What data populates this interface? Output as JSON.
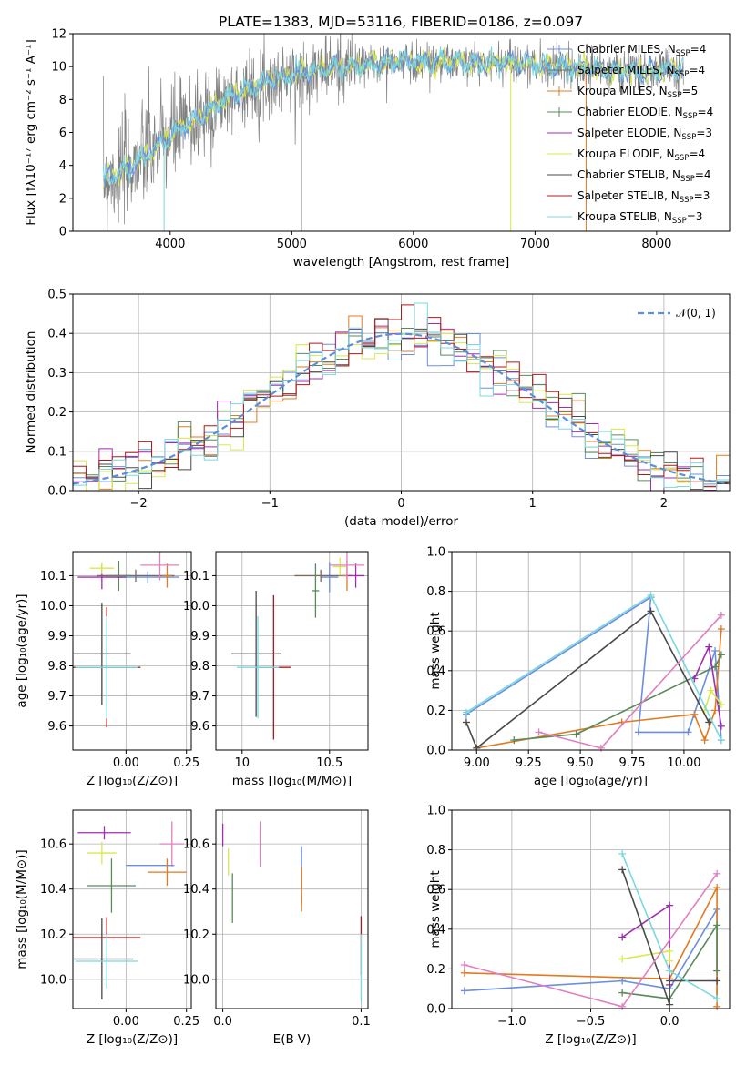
{
  "figure": {
    "title": "PLATE=1383, MJD=53116, FIBERID=0186, z=0.097"
  },
  "colors": {
    "chabrier_miles": "#6a8fe0",
    "salpeter_miles": "#7a6a60",
    "kroupa_miles": "#e07b20",
    "chabrier_elodie": "#5a8a5a",
    "salpeter_elodie": "#a02cb0",
    "kroupa_elodie": "#d8e84a",
    "chabrier_stelib": "#4a4a4a",
    "salpeter_stelib": "#b01818",
    "kroupa_stelib": "#7ad8e0",
    "pink": "#e080c0",
    "normal_curve": "#5b8fd8",
    "data_gray": "#808080"
  },
  "chart_data": [
    {
      "id": "spectrum",
      "type": "line",
      "xlabel": "wavelength [Angstrom, rest frame]",
      "ylabel": "Flux [fλ10⁻¹⁷ erg cm⁻² s⁻¹ A⁻¹]",
      "xlim": [
        3200,
        8600
      ],
      "ylim": [
        0,
        12
      ],
      "xticks": [
        4000,
        5000,
        6000,
        7000,
        8000
      ],
      "yticks": [
        0,
        2,
        4,
        6,
        8,
        10,
        12
      ],
      "continuum_model": {
        "x": [
          3450,
          3600,
          3800,
          4000,
          4200,
          4500,
          4800,
          5000,
          5300,
          5600,
          5900,
          6200,
          6500,
          6800,
          7000,
          7300,
          7600,
          7900,
          8200
        ],
        "y": [
          3.2,
          3.6,
          4.6,
          5.8,
          6.8,
          8.2,
          9.1,
          9.5,
          9.9,
          10.1,
          10.3,
          10.3,
          10.2,
          10.3,
          10.1,
          10.0,
          9.8,
          9.7,
          9.9
        ]
      },
      "legend": [
        {
          "label": "Chabrier MILES, N",
          "sub": "SSP",
          "tail": "=4",
          "color_key": "chabrier_miles",
          "marker": "+"
        },
        {
          "label": "Salpeter MILES, N",
          "sub": "SSP",
          "tail": "=4",
          "color_key": "salpeter_miles",
          "marker": "+"
        },
        {
          "label": "Kroupa MILES, N",
          "sub": "SSP",
          "tail": "=5",
          "color_key": "kroupa_miles",
          "marker": "+"
        },
        {
          "label": "Chabrier ELODIE, N",
          "sub": "SSP",
          "tail": "=4",
          "color_key": "chabrier_elodie",
          "marker": "+"
        },
        {
          "label": "Salpeter ELODIE, N",
          "sub": "SSP",
          "tail": "=3",
          "color_key": "salpeter_elodie",
          "marker": "-"
        },
        {
          "label": "Kroupa ELODIE, N",
          "sub": "SSP",
          "tail": "=4",
          "color_key": "kroupa_elodie",
          "marker": "-"
        },
        {
          "label": "Chabrier STELIB, N",
          "sub": "SSP",
          "tail": "=4",
          "color_key": "chabrier_stelib",
          "marker": "-"
        },
        {
          "label": "Salpeter STELIB, N",
          "sub": "SSP",
          "tail": "=3",
          "color_key": "salpeter_stelib",
          "marker": "-"
        },
        {
          "label": "Kroupa STELIB, N",
          "sub": "SSP",
          "tail": "=3",
          "color_key": "kroupa_stelib",
          "marker": "-"
        }
      ]
    },
    {
      "id": "residual_hist",
      "type": "line",
      "xlabel": "(data-model)/error",
      "ylabel": "Normed distribution",
      "xlim": [
        -2.5,
        2.5
      ],
      "ylim": [
        0,
        0.5
      ],
      "xticks": [
        -2,
        -1,
        0,
        1,
        2
      ],
      "yticks": [
        0.0,
        0.1,
        0.2,
        0.3,
        0.4,
        0.5
      ],
      "legend_label": "𝒩(0, 1)",
      "bin_width": 0.1,
      "bin_centers_from": -2.45
    },
    {
      "id": "age_vs_Z",
      "type": "scatter",
      "xlabel": "Z [log₁₀(Z/Z⊙)]",
      "ylabel": "age  [log₁₀(age/yr)]",
      "xlim": [
        -0.22,
        0.27
      ],
      "ylim": [
        9.52,
        10.18
      ],
      "xticks": [
        0.0,
        0.25
      ],
      "xticklabels": [
        "0.00",
        "0.25"
      ],
      "yticks": [
        9.6,
        9.7,
        9.8,
        9.9,
        10.0,
        10.1
      ],
      "points": [
        {
          "color_key": "chabrier_miles",
          "x": 0.09,
          "y": 10.095,
          "xerr": 0.13,
          "yerr": 0.02
        },
        {
          "color_key": "salpeter_miles",
          "x": 0.04,
          "y": 10.1,
          "xerr": 0.16,
          "yerr": 0.02
        },
        {
          "color_key": "kroupa_miles",
          "x": 0.17,
          "y": 10.1,
          "xerr": 0.02,
          "yerr": 0.04
        },
        {
          "color_key": "chabrier_elodie",
          "x": -0.03,
          "y": 10.1,
          "xerr": 0.05,
          "yerr": 0.05
        },
        {
          "color_key": "salpeter_elodie",
          "x": -0.1,
          "y": 10.095,
          "xerr": 0.1,
          "yerr": 0.04
        },
        {
          "color_key": "kroupa_elodie",
          "x": -0.1,
          "y": 10.125,
          "xerr": 0.05,
          "yerr": 0.02
        },
        {
          "color_key": "chabrier_stelib",
          "x": -0.1,
          "y": 9.84,
          "xerr": 0.12,
          "yerr": 0.17
        },
        {
          "color_key": "salpeter_stelib",
          "x": -0.08,
          "y": 9.795,
          "xerr": 0.14,
          "yerr": 0.2
        },
        {
          "color_key": "kroupa_stelib",
          "x": -0.08,
          "y": 9.795,
          "xerr": 0.13,
          "yerr": 0.17
        },
        {
          "color_key": "pink",
          "x": 0.14,
          "y": 10.135,
          "xerr": 0.08,
          "yerr": 0.05
        }
      ]
    },
    {
      "id": "age_vs_mass",
      "type": "scatter",
      "xlabel": "mass [log₁₀(M/M⊙)]",
      "ylabel": "",
      "xlim": [
        9.85,
        10.72
      ],
      "ylim": [
        9.52,
        10.18
      ],
      "xticks": [
        10.0,
        10.5
      ],
      "xticklabels": [
        "10",
        "10.5"
      ],
      "yticks": [
        9.6,
        9.7,
        9.8,
        9.9,
        10.0,
        10.1
      ],
      "points": [
        {
          "color_key": "chabrier_miles",
          "x": 10.5,
          "y": 10.095,
          "xerr": 0.05,
          "yerr": 0.05
        },
        {
          "color_key": "salpeter_miles",
          "x": 10.45,
          "y": 10.1,
          "xerr": 0.15,
          "yerr": 0.02
        },
        {
          "color_key": "kroupa_miles",
          "x": 10.6,
          "y": 10.1,
          "xerr": 0.03,
          "yerr": 0.05
        },
        {
          "color_key": "chabrier_elodie",
          "x": 10.42,
          "y": 10.05,
          "xerr": 0.02,
          "yerr": 0.09
        },
        {
          "color_key": "salpeter_elodie",
          "x": 10.65,
          "y": 10.1,
          "xerr": 0.05,
          "yerr": 0.04
        },
        {
          "color_key": "kroupa_elodie",
          "x": 10.56,
          "y": 10.13,
          "xerr": 0.04,
          "yerr": 0.03
        },
        {
          "color_key": "chabrier_stelib",
          "x": 10.08,
          "y": 9.84,
          "xerr": 0.14,
          "yerr": 0.21
        },
        {
          "color_key": "salpeter_stelib",
          "x": 10.18,
          "y": 9.795,
          "xerr": 0.1,
          "yerr": 0.24
        },
        {
          "color_key": "kroupa_stelib",
          "x": 10.09,
          "y": 9.795,
          "xerr": 0.12,
          "yerr": 0.17
        },
        {
          "color_key": "pink",
          "x": 10.6,
          "y": 10.135,
          "xerr": 0.1,
          "yerr": 0.05
        }
      ]
    },
    {
      "id": "weight_vs_age",
      "type": "line",
      "xlabel": "age  [log₁₀(age/yr)]",
      "ylabel": "mass weight",
      "xlim": [
        8.88,
        10.22
      ],
      "ylim": [
        0,
        1.0
      ],
      "xticks": [
        9.0,
        9.25,
        9.5,
        9.75,
        10.0
      ],
      "xticklabels": [
        "9.00",
        "9.25",
        "9.50",
        "9.75",
        "10.00"
      ],
      "yticks": [
        0.0,
        0.2,
        0.4,
        0.6,
        0.8,
        1.0
      ],
      "series": [
        {
          "color_key": "chabrier_miles",
          "x": [
            8.95,
            9.84,
            9.78,
            10.02,
            10.15,
            10.18
          ],
          "y": [
            0.18,
            0.77,
            0.09,
            0.09,
            0.5,
            0.05
          ]
        },
        {
          "color_key": "kroupa_miles",
          "x": [
            9.0,
            9.7,
            10.05,
            10.1,
            10.15,
            10.18
          ],
          "y": [
            0.01,
            0.14,
            0.18,
            0.05,
            0.2,
            0.61
          ]
        },
        {
          "color_key": "chabrier_elodie",
          "x": [
            9.18,
            9.48,
            10.15,
            10.18
          ],
          "y": [
            0.05,
            0.08,
            0.42,
            0.48
          ]
        },
        {
          "color_key": "salpeter_elodie",
          "x": [
            10.05,
            10.12,
            10.18
          ],
          "y": [
            0.36,
            0.52,
            0.12
          ]
        },
        {
          "color_key": "kroupa_elodie",
          "x": [
            10.1,
            10.13,
            10.18
          ],
          "y": [
            0.2,
            0.3,
            0.23
          ]
        },
        {
          "color_key": "chabrier_stelib",
          "x": [
            8.95,
            9.0,
            9.84,
            10.12
          ],
          "y": [
            0.14,
            0.01,
            0.7,
            0.14
          ]
        },
        {
          "color_key": "kroupa_stelib",
          "x": [
            8.95,
            9.84,
            10.18
          ],
          "y": [
            0.19,
            0.78,
            0.05
          ]
        },
        {
          "color_key": "pink",
          "x": [
            9.3,
            9.6,
            10.18
          ],
          "y": [
            0.09,
            0.01,
            0.68
          ]
        }
      ]
    },
    {
      "id": "mass_vs_Z",
      "type": "scatter",
      "xlabel": "Z [log₁₀(Z/Z⊙)]",
      "ylabel": "mass [log₁₀(M/M⊙)]",
      "xlim": [
        -0.22,
        0.27
      ],
      "ylim": [
        9.87,
        10.75
      ],
      "xticks": [
        0.0,
        0.25
      ],
      "xticklabels": [
        "0.00",
        "0.25"
      ],
      "yticks": [
        10.0,
        10.2,
        10.4,
        10.6
      ],
      "points": [
        {
          "color_key": "chabrier_miles",
          "x": 0.1,
          "y": 10.505,
          "xerr": 0.1,
          "yerr": 0.0
        },
        {
          "color_key": "kroupa_miles",
          "x": 0.17,
          "y": 10.475,
          "xerr": 0.08,
          "yerr": 0.06
        },
        {
          "color_key": "chabrier_elodie",
          "x": -0.06,
          "y": 10.415,
          "xerr": 0.1,
          "yerr": 0.12
        },
        {
          "color_key": "salpeter_elodie",
          "x": -0.09,
          "y": 10.65,
          "xerr": 0.11,
          "yerr": 0.03
        },
        {
          "color_key": "kroupa_elodie",
          "x": -0.1,
          "y": 10.56,
          "xerr": 0.06,
          "yerr": 0.05
        },
        {
          "color_key": "chabrier_stelib",
          "x": -0.1,
          "y": 10.09,
          "xerr": 0.13,
          "yerr": 0.18
        },
        {
          "color_key": "salpeter_stelib",
          "x": -0.08,
          "y": 10.185,
          "xerr": 0.14,
          "yerr": 0.09
        },
        {
          "color_key": "kroupa_stelib",
          "x": -0.08,
          "y": 10.08,
          "xerr": 0.13,
          "yerr": 0.12
        },
        {
          "color_key": "pink",
          "x": 0.19,
          "y": 10.6,
          "xerr": 0.05,
          "yerr": 0.1
        }
      ]
    },
    {
      "id": "mass_vs_ebv",
      "type": "scatter",
      "xlabel": "E(B-V)",
      "ylabel": "",
      "xlim": [
        -0.005,
        0.105
      ],
      "ylim": [
        9.87,
        10.75
      ],
      "xticks": [
        0.0,
        0.1
      ],
      "xticklabels": [
        "0.0",
        "0.1"
      ],
      "yticks": [
        10.0,
        10.2,
        10.4,
        10.6
      ],
      "points": [
        {
          "color_key": "chabrier_miles",
          "x": 0.057,
          "y": 10.46,
          "xerr": 0.0,
          "yerr": 0.13
        },
        {
          "color_key": "kroupa_miles",
          "x": 0.057,
          "y": 10.4,
          "xerr": 0.0,
          "yerr": 0.1
        },
        {
          "color_key": "chabrier_elodie",
          "x": 0.007,
          "y": 10.36,
          "xerr": 0.0,
          "yerr": 0.11
        },
        {
          "color_key": "salpeter_elodie",
          "x": 0.0,
          "y": 10.64,
          "xerr": 0.0,
          "yerr": 0.05
        },
        {
          "color_key": "kroupa_elodie",
          "x": 0.004,
          "y": 10.52,
          "xerr": 0.0,
          "yerr": 0.06
        },
        {
          "color_key": "salpeter_stelib",
          "x": 0.1,
          "y": 10.15,
          "xerr": 0.0,
          "yerr": 0.13
        },
        {
          "color_key": "kroupa_stelib",
          "x": 0.1,
          "y": 10.05,
          "xerr": 0.0,
          "yerr": 0.15
        },
        {
          "color_key": "pink",
          "x": 0.027,
          "y": 10.6,
          "xerr": 0.0,
          "yerr": 0.1
        }
      ]
    },
    {
      "id": "weight_vs_Z",
      "type": "line",
      "xlabel": "Z [log₁₀(Z/Z⊙)]",
      "ylabel": "mass weight",
      "xlim": [
        -1.38,
        0.38
      ],
      "ylim": [
        0,
        1.0
      ],
      "xticks": [
        -1.0,
        -0.5,
        0.0
      ],
      "xticklabels": [
        "−1.0",
        "−0.5",
        "0.0"
      ],
      "yticks": [
        0.0,
        0.2,
        0.4,
        0.6,
        0.8,
        1.0
      ],
      "series": [
        {
          "color_key": "chabrier_miles",
          "x": [
            -1.3,
            -0.3,
            0.0,
            0.3,
            0.3
          ],
          "y": [
            0.09,
            0.14,
            0.1,
            0.5,
            0.05
          ]
        },
        {
          "color_key": "kroupa_miles",
          "x": [
            -1.3,
            0.0,
            0.3,
            0.3
          ],
          "y": [
            0.18,
            0.15,
            0.61,
            0.01
          ]
        },
        {
          "color_key": "chabrier_elodie",
          "x": [
            -0.3,
            0.0,
            0.3,
            0.3
          ],
          "y": [
            0.08,
            0.05,
            0.42,
            0.19
          ]
        },
        {
          "color_key": "salpeter_elodie",
          "x": [
            -0.3,
            0.0,
            0.0
          ],
          "y": [
            0.36,
            0.52,
            0.12
          ]
        },
        {
          "color_key": "kroupa_elodie",
          "x": [
            -0.3,
            0.0,
            0.0
          ],
          "y": [
            0.25,
            0.29,
            0.24
          ]
        },
        {
          "color_key": "chabrier_stelib",
          "x": [
            -0.3,
            0.0,
            0.0,
            0.3
          ],
          "y": [
            0.7,
            0.02,
            0.14,
            0.14
          ]
        },
        {
          "color_key": "kroupa_stelib",
          "x": [
            -0.3,
            0.0,
            0.3
          ],
          "y": [
            0.78,
            0.19,
            0.05
          ]
        },
        {
          "color_key": "pink",
          "x": [
            -1.3,
            -0.3,
            0.3
          ],
          "y": [
            0.22,
            0.01,
            0.68
          ]
        }
      ]
    }
  ]
}
